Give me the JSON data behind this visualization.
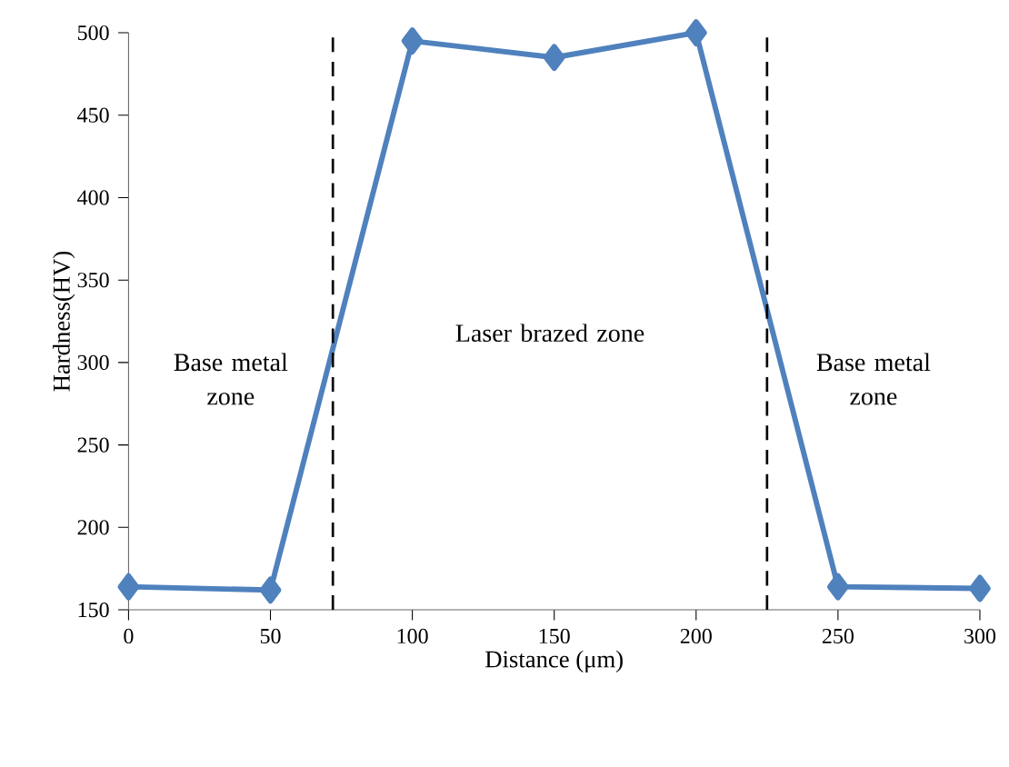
{
  "chart_data": {
    "type": "line",
    "xlabel": "Distance (μm)",
    "ylabel": "Hardness(HV)",
    "x": [
      0,
      50,
      100,
      150,
      200,
      250,
      300
    ],
    "series": [
      {
        "color": "#4f81bd",
        "values": [
          164,
          162,
          495,
          485,
          500,
          164,
          163
        ]
      }
    ],
    "xlim": [
      0,
      300
    ],
    "xticks": [
      0,
      50,
      100,
      150,
      200,
      250,
      300
    ],
    "ylim": [
      150,
      500
    ],
    "yticks": [
      150,
      200,
      250,
      300,
      350,
      400,
      450,
      500
    ],
    "ref_lines": [
      {
        "axis": "x",
        "value": 72,
        "color": "#000000",
        "line_style": "dashed"
      },
      {
        "axis": "x",
        "value": 225,
        "color": "#000000",
        "line_style": "dashed"
      }
    ],
    "annotations": [
      "Base metal zone",
      "Laser brazed zone",
      "Base metal zone"
    ],
    "grid": false,
    "marker": "diamond",
    "line_style": "solid"
  }
}
